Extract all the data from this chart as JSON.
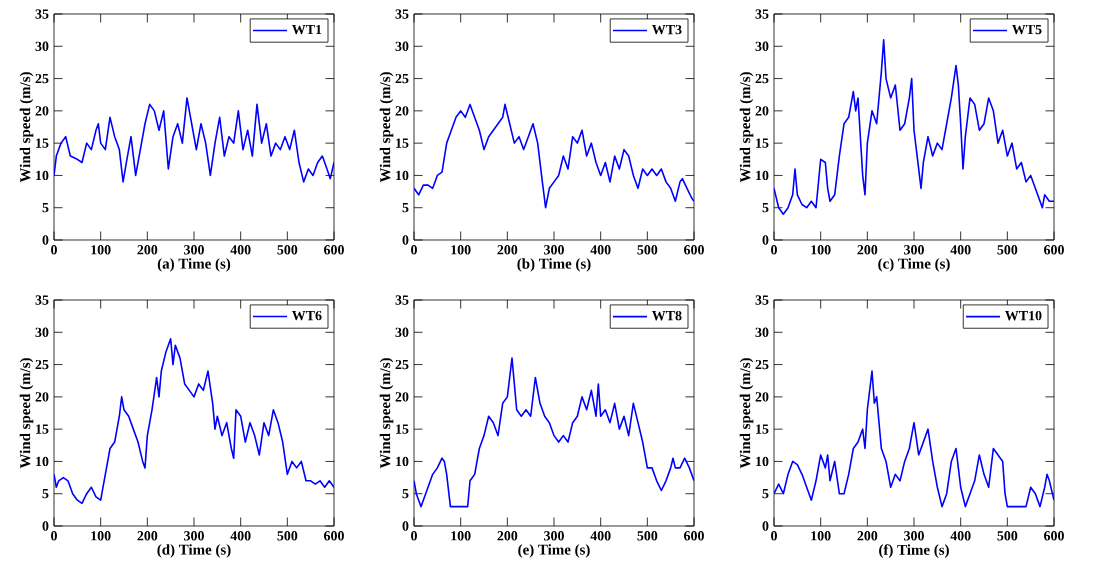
{
  "chart_data": [
    {
      "type": "line",
      "xlabel": "(a) Time (s)",
      "ylabel": "Wind speed (m/s)",
      "xlim": [
        0,
        600
      ],
      "ylim": [
        0,
        35
      ],
      "xticks": [
        0,
        100,
        200,
        300,
        400,
        500,
        600
      ],
      "yticks": [
        0,
        5,
        10,
        15,
        20,
        25,
        30,
        35
      ],
      "legend": "top right",
      "series": [
        {
          "name": "WT1",
          "color": "#0000ff",
          "x": [
            0,
            5,
            15,
            25,
            35,
            50,
            60,
            70,
            80,
            90,
            95,
            100,
            110,
            120,
            130,
            140,
            148,
            155,
            165,
            175,
            185,
            195,
            205,
            215,
            225,
            235,
            245,
            255,
            265,
            275,
            285,
            295,
            305,
            315,
            325,
            335,
            345,
            355,
            365,
            375,
            385,
            395,
            405,
            415,
            425,
            435,
            445,
            455,
            465,
            475,
            485,
            495,
            505,
            515,
            525,
            535,
            545,
            555,
            565,
            575,
            585,
            592,
            600
          ],
          "values": [
            10,
            13,
            15,
            16,
            13,
            12.5,
            12,
            15,
            14,
            17,
            18,
            15,
            14,
            19,
            16,
            14,
            9,
            12,
            16,
            10,
            14,
            18,
            21,
            20,
            17,
            20,
            11,
            16,
            18,
            15,
            22,
            18,
            14,
            18,
            15,
            10,
            15,
            19,
            13,
            16,
            15,
            20,
            14,
            17,
            13,
            21,
            15,
            18,
            13,
            15,
            14,
            16,
            14,
            17,
            12,
            9,
            11,
            10,
            12,
            13,
            11,
            9.5,
            12
          ]
        }
      ]
    },
    {
      "type": "line",
      "xlabel": "(b) Time (s)",
      "ylabel": "Wind speed (m/s)",
      "xlim": [
        0,
        600
      ],
      "ylim": [
        0,
        35
      ],
      "xticks": [
        0,
        100,
        200,
        300,
        400,
        500,
        600
      ],
      "yticks": [
        0,
        5,
        10,
        15,
        20,
        25,
        30,
        35
      ],
      "legend": "top right",
      "series": [
        {
          "name": "WT3",
          "color": "#0000ff",
          "x": [
            0,
            10,
            20,
            30,
            40,
            50,
            60,
            70,
            80,
            90,
            100,
            110,
            120,
            130,
            140,
            150,
            160,
            170,
            180,
            190,
            195,
            205,
            215,
            225,
            235,
            245,
            255,
            265,
            275,
            282,
            290,
            300,
            310,
            320,
            330,
            340,
            350,
            360,
            370,
            380,
            390,
            400,
            410,
            420,
            430,
            440,
            450,
            460,
            470,
            480,
            490,
            500,
            510,
            520,
            530,
            540,
            550,
            560,
            570,
            575,
            585,
            595,
            600
          ],
          "values": [
            8,
            7,
            8.5,
            8.5,
            8,
            10,
            10.5,
            15,
            17,
            19,
            20,
            19,
            21,
            19,
            17,
            14,
            16,
            17,
            18,
            19,
            21,
            18,
            15,
            16,
            14,
            16,
            18,
            15,
            9,
            5,
            8,
            9,
            10,
            13,
            11,
            16,
            15,
            17,
            13,
            15,
            12,
            10,
            12,
            9,
            13,
            11,
            14,
            13,
            10,
            8,
            11,
            10,
            11,
            10,
            11,
            9,
            8,
            6,
            9,
            9.5,
            8,
            6.5,
            6
          ]
        }
      ]
    },
    {
      "type": "line",
      "xlabel": "(c) Time (s)",
      "ylabel": "Wind speed (m/s)",
      "xlim": [
        0,
        600
      ],
      "ylim": [
        0,
        35
      ],
      "xticks": [
        0,
        100,
        200,
        300,
        400,
        500,
        600
      ],
      "yticks": [
        0,
        5,
        10,
        15,
        20,
        25,
        30,
        35
      ],
      "legend": "top right",
      "series": [
        {
          "name": "WT5",
          "color": "#0000ff",
          "x": [
            0,
            10,
            20,
            30,
            40,
            45,
            50,
            60,
            70,
            80,
            90,
            100,
            110,
            115,
            120,
            130,
            140,
            150,
            160,
            170,
            175,
            180,
            190,
            195,
            200,
            210,
            220,
            230,
            235,
            240,
            250,
            260,
            270,
            280,
            290,
            295,
            300,
            310,
            315,
            320,
            330,
            340,
            350,
            360,
            370,
            380,
            390,
            395,
            400,
            405,
            410,
            420,
            430,
            440,
            450,
            460,
            470,
            480,
            490,
            500,
            510,
            520,
            530,
            540,
            550,
            560,
            570,
            575,
            580,
            590,
            600
          ],
          "values": [
            8,
            5,
            4,
            5,
            7,
            11,
            7,
            5.5,
            5,
            6,
            5,
            12.5,
            12,
            8,
            6,
            7,
            13,
            18,
            19,
            23,
            20,
            22,
            10,
            7,
            15,
            20,
            18,
            26,
            31,
            25,
            22,
            24,
            17,
            18,
            22,
            25,
            17,
            11,
            8,
            12,
            16,
            13,
            15,
            14,
            18,
            22,
            27,
            24,
            18,
            11,
            16,
            22,
            21,
            17,
            18,
            22,
            20,
            15,
            17,
            13,
            15,
            11,
            12,
            9,
            10,
            8,
            6,
            5,
            7,
            6,
            6
          ]
        }
      ]
    },
    {
      "type": "line",
      "xlabel": "(d) Time (s)",
      "ylabel": "Wind speed (m/s)",
      "xlim": [
        0,
        600
      ],
      "ylim": [
        0,
        35
      ],
      "xticks": [
        0,
        100,
        200,
        300,
        400,
        500,
        600
      ],
      "yticks": [
        0,
        5,
        10,
        15,
        20,
        25,
        30,
        35
      ],
      "legend": "top right",
      "series": [
        {
          "name": "WT6",
          "color": "#0000ff",
          "x": [
            0,
            5,
            10,
            20,
            30,
            40,
            50,
            60,
            70,
            80,
            90,
            100,
            110,
            120,
            130,
            140,
            145,
            150,
            160,
            170,
            180,
            190,
            195,
            200,
            210,
            220,
            225,
            230,
            240,
            250,
            255,
            260,
            270,
            280,
            290,
            300,
            310,
            320,
            330,
            340,
            345,
            350,
            360,
            370,
            380,
            385,
            390,
            400,
            410,
            420,
            430,
            440,
            450,
            460,
            470,
            480,
            490,
            500,
            510,
            520,
            530,
            540,
            550,
            560,
            570,
            580,
            590,
            600
          ],
          "values": [
            8,
            6,
            7,
            7.5,
            7,
            5,
            4,
            3.5,
            5,
            6,
            4.5,
            4,
            8,
            12,
            13,
            17,
            20,
            18,
            17,
            15,
            13,
            10,
            9,
            14,
            18,
            23,
            20,
            24,
            27,
            29,
            25,
            28,
            26,
            22,
            21,
            20,
            22,
            21,
            24,
            19,
            15,
            17,
            14,
            16,
            12,
            10.5,
            18,
            17,
            13,
            16,
            14,
            11,
            16,
            14,
            18,
            16,
            13,
            8,
            10,
            9,
            10,
            7,
            7,
            6.5,
            7,
            6,
            7,
            6
          ]
        }
      ]
    },
    {
      "type": "line",
      "xlabel": "(e) Time (s)",
      "ylabel": "Wind speed (m/s)",
      "xlim": [
        0,
        600
      ],
      "ylim": [
        0,
        35
      ],
      "xticks": [
        0,
        100,
        200,
        300,
        400,
        500,
        600
      ],
      "yticks": [
        0,
        5,
        10,
        15,
        20,
        25,
        30,
        35
      ],
      "legend": "top right",
      "series": [
        {
          "name": "WT8",
          "color": "#0000ff",
          "x": [
            0,
            5,
            10,
            15,
            20,
            30,
            40,
            50,
            60,
            65,
            70,
            78,
            90,
            100,
            110,
            115,
            120,
            130,
            140,
            150,
            160,
            170,
            180,
            190,
            200,
            210,
            215,
            220,
            230,
            240,
            250,
            260,
            270,
            280,
            290,
            300,
            310,
            320,
            330,
            340,
            350,
            360,
            370,
            380,
            390,
            395,
            400,
            410,
            420,
            430,
            440,
            450,
            460,
            470,
            480,
            490,
            500,
            510,
            520,
            530,
            540,
            550,
            555,
            560,
            570,
            580,
            590,
            600
          ],
          "values": [
            7,
            5,
            4,
            3,
            4,
            6,
            8,
            9,
            10.5,
            10,
            8,
            3,
            3,
            3,
            3,
            3,
            7,
            8,
            12,
            14,
            17,
            16,
            14,
            19,
            20,
            26,
            22,
            18,
            17,
            18,
            17,
            23,
            19,
            17,
            16,
            14,
            13,
            14,
            13,
            16,
            17,
            20,
            18,
            21,
            17,
            22,
            17,
            18,
            16,
            19,
            15,
            17,
            14,
            19,
            16,
            13,
            9,
            9,
            7,
            5.5,
            7,
            9,
            10.5,
            9,
            9,
            10.5,
            9,
            7
          ]
        }
      ]
    },
    {
      "type": "line",
      "xlabel": "(f) Time (s)",
      "ylabel": "Wind speed (m/s)",
      "xlim": [
        0,
        600
      ],
      "ylim": [
        0,
        35
      ],
      "xticks": [
        0,
        100,
        200,
        300,
        400,
        500,
        600
      ],
      "yticks": [
        0,
        5,
        10,
        15,
        20,
        25,
        30,
        35
      ],
      "legend": "top right",
      "series": [
        {
          "name": "WT10",
          "color": "#0000ff",
          "x": [
            0,
            10,
            20,
            30,
            40,
            50,
            60,
            70,
            80,
            90,
            100,
            110,
            115,
            120,
            130,
            140,
            150,
            160,
            170,
            180,
            190,
            195,
            200,
            210,
            215,
            220,
            230,
            240,
            250,
            260,
            270,
            280,
            290,
            300,
            310,
            320,
            330,
            340,
            350,
            360,
            370,
            380,
            390,
            395,
            400,
            410,
            420,
            430,
            440,
            450,
            460,
            470,
            480,
            490,
            495,
            500,
            540,
            550,
            560,
            570,
            580,
            585,
            590,
            600
          ],
          "values": [
            5,
            6.5,
            5,
            8,
            10,
            9.5,
            8,
            6,
            4,
            7,
            11,
            9,
            11,
            7,
            10,
            5,
            5,
            8,
            12,
            13,
            15,
            12,
            18,
            24,
            19,
            20,
            12,
            10,
            6,
            8,
            7,
            10,
            12,
            16,
            11,
            13,
            15,
            10,
            6,
            3,
            5,
            10,
            12,
            9,
            6,
            3,
            5,
            7,
            11,
            8,
            6,
            12,
            11,
            10,
            5,
            3,
            3,
            6,
            5,
            3,
            6,
            8,
            7,
            4
          ]
        }
      ]
    }
  ]
}
